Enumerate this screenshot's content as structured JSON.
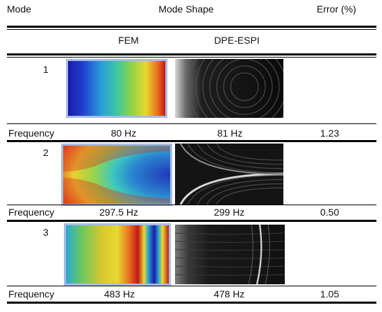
{
  "header": {
    "mode": "Mode",
    "mode_shape": "Mode Shape",
    "error": "Error (%)",
    "fem": "FEM",
    "espi": "DPE-ESPI"
  },
  "rows": [
    {
      "mode": "1",
      "freq_label": "Frequency",
      "fem_freq": "80 Hz",
      "espi_freq": "81 Hz",
      "error": "1.23"
    },
    {
      "mode": "2",
      "freq_label": "Frequency",
      "fem_freq": "297.5 Hz",
      "espi_freq": "299 Hz",
      "error": "0.50"
    },
    {
      "mode": "3",
      "freq_label": "Frequency",
      "fem_freq": "483 Hz",
      "espi_freq": "478 Hz",
      "error": "1.05"
    }
  ]
}
